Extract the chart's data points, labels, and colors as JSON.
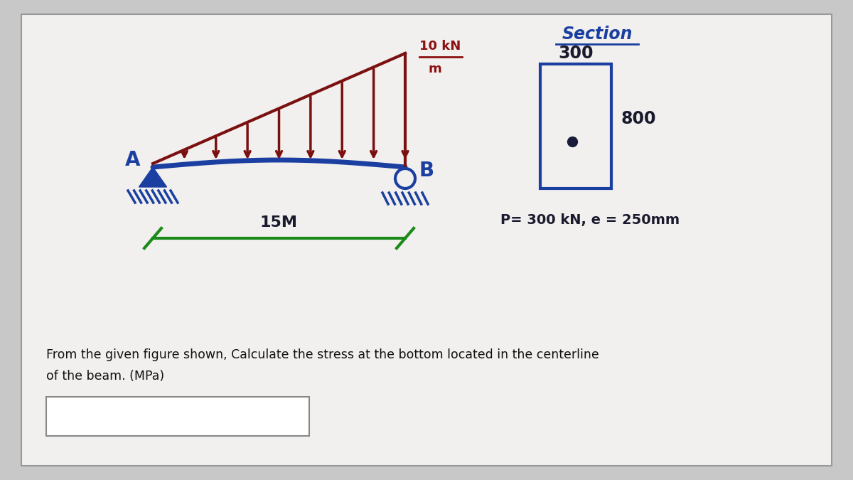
{
  "bg_color": "#c8c8c8",
  "card_color": "#f0eeec",
  "beam_color": "#1a3fa0",
  "load_color": "#7a1010",
  "green_color": "#1a8a1a",
  "section_color": "#1a3fa0",
  "dark_text": "#1a1a2e",
  "red_label_color": "#8b1010",
  "label_A": "A",
  "label_B": "B",
  "load_label_top": "10 kN",
  "load_label_bot": "m",
  "dimension_label": "15M",
  "section_title": "Section",
  "section_w_label": "300",
  "section_h_label": "800",
  "param_label": "P= 300 kN, e = 250mm",
  "question_line1": "From the given figure shown, Calculate the stress at the bottom located in the centerline",
  "question_line2": "of the beam. (MPa)"
}
